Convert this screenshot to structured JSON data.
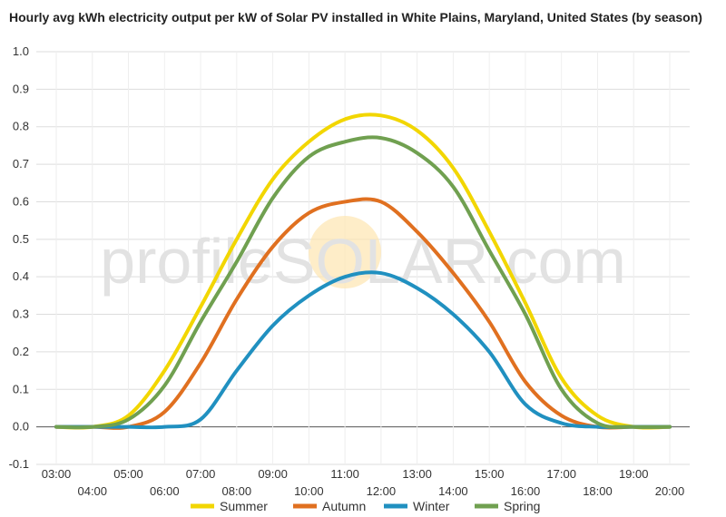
{
  "watermark": "profileSOLAR.com",
  "chart_data": {
    "type": "line",
    "title": "Hourly avg kWh electricity output per kW of Solar PV installed in White Plains, Maryland, United States (by season)",
    "xlabel": "",
    "ylabel": "",
    "ylim": [
      -0.1,
      1.0
    ],
    "yticks": [
      "-0.1",
      "0.0",
      "0.1",
      "0.2",
      "0.3",
      "0.4",
      "0.5",
      "0.6",
      "0.7",
      "0.8",
      "0.9",
      "1.0"
    ],
    "x": [
      "03:00",
      "04:00",
      "05:00",
      "06:00",
      "07:00",
      "08:00",
      "09:00",
      "10:00",
      "11:00",
      "12:00",
      "13:00",
      "14:00",
      "15:00",
      "16:00",
      "17:00",
      "18:00",
      "19:00",
      "20:00"
    ],
    "grid": true,
    "legend_position": "bottom",
    "series": [
      {
        "name": "Summer",
        "color": "#f2d600",
        "values": [
          0.0,
          0.0,
          0.03,
          0.15,
          0.32,
          0.5,
          0.66,
          0.76,
          0.82,
          0.83,
          0.79,
          0.69,
          0.52,
          0.33,
          0.13,
          0.03,
          0.0,
          0.0
        ]
      },
      {
        "name": "Autumn",
        "color": "#e07020",
        "values": [
          0.0,
          0.0,
          0.0,
          0.04,
          0.17,
          0.34,
          0.48,
          0.57,
          0.6,
          0.6,
          0.52,
          0.41,
          0.28,
          0.12,
          0.03,
          0.0,
          0.0,
          0.0
        ]
      },
      {
        "name": "Winter",
        "color": "#2090c0",
        "values": [
          0.0,
          0.0,
          0.0,
          0.0,
          0.02,
          0.15,
          0.27,
          0.35,
          0.4,
          0.41,
          0.37,
          0.3,
          0.2,
          0.06,
          0.01,
          0.0,
          0.0,
          0.0
        ]
      },
      {
        "name": "Spring",
        "color": "#70a050",
        "values": [
          0.0,
          0.0,
          0.02,
          0.11,
          0.28,
          0.44,
          0.61,
          0.72,
          0.76,
          0.77,
          0.73,
          0.64,
          0.47,
          0.3,
          0.1,
          0.01,
          0.0,
          0.0
        ]
      }
    ]
  }
}
